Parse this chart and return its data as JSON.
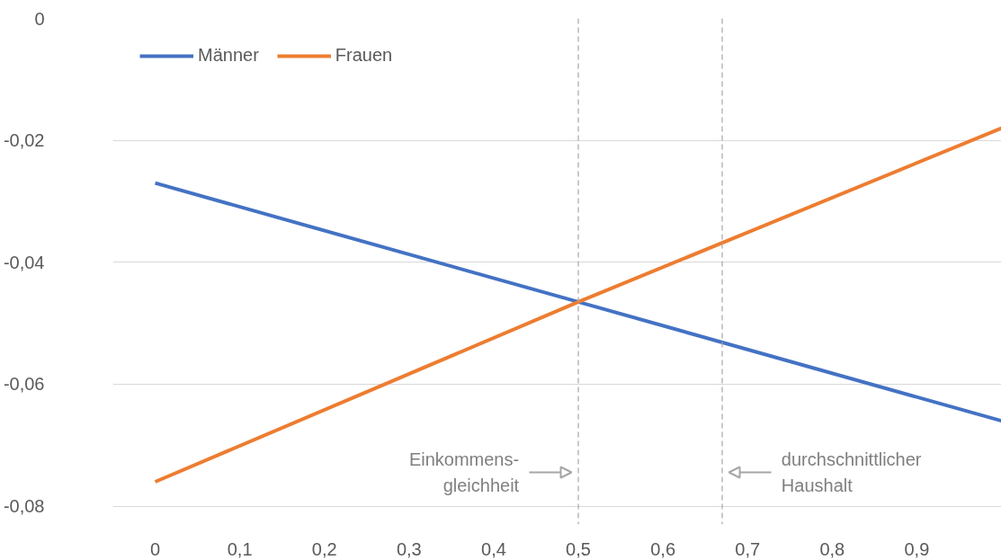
{
  "chart_data": {
    "type": "line",
    "x": [
      0,
      0.5,
      1.0
    ],
    "series": [
      {
        "name": "Männer",
        "color": "#4472c4",
        "values": [
          -0.027,
          -0.0465,
          -0.066
        ]
      },
      {
        "name": "Frauen",
        "color": "#ed7d31",
        "values": [
          -0.076,
          -0.0465,
          -0.018
        ]
      }
    ],
    "xlim": [
      -0.05,
      1.0
    ],
    "xticks": [
      0,
      {
        "value": 0.1,
        "label": "0,1"
      },
      {
        "value": 0.2,
        "label": "0,2"
      },
      {
        "value": 0.3,
        "label": "0,3"
      },
      {
        "value": 0.4,
        "label": "0,4"
      },
      {
        "value": 0.5,
        "label": "0,5"
      },
      {
        "value": 0.6,
        "label": "0,6"
      },
      {
        "value": 0.7,
        "label": "0,7"
      },
      {
        "value": 0.8,
        "label": "0,8"
      },
      {
        "value": 0.9,
        "label": "0,9"
      }
    ],
    "ylim": [
      -0.083,
      0
    ],
    "yticks": [
      0,
      {
        "value": -0.02,
        "label": "-0,02"
      },
      {
        "value": -0.04,
        "label": "-0,04"
      },
      {
        "value": -0.06,
        "label": "-0,06"
      },
      {
        "value": -0.08,
        "label": "-0,08"
      }
    ],
    "grid": "y",
    "legend": "top left",
    "line_style": "solid",
    "marker": "none",
    "ref_lines": [
      {
        "axis": "x",
        "value": 0.5,
        "color": "#a6a6a6",
        "line_style": "dashed",
        "label": "Einkommens-\ngleichheit"
      },
      {
        "axis": "x",
        "value": 0.67,
        "color": "#a6a6a6",
        "line_style": "dashed",
        "label": "durchschnittlicher\nHaushalt"
      }
    ]
  }
}
